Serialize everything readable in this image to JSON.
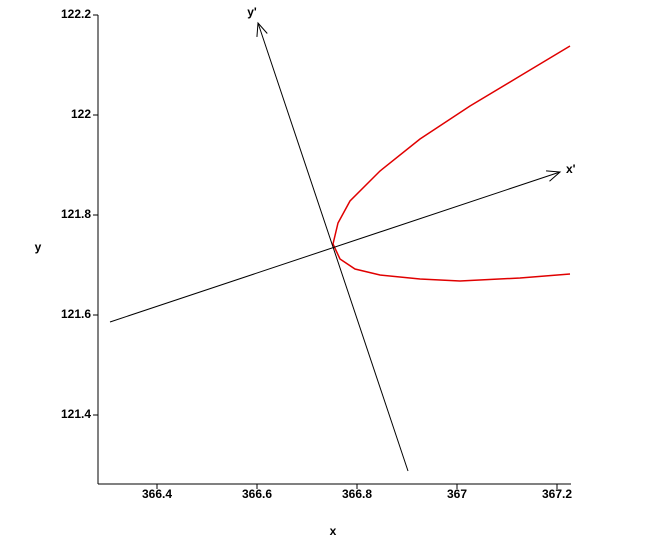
{
  "chart_data": {
    "type": "line",
    "xlabel": "x",
    "ylabel": "y",
    "xlim": [
      366.282,
      367.228
    ],
    "ylim": [
      121.262,
      122.2
    ],
    "xticks": [
      366.4,
      366.6,
      366.8,
      367,
      367.2
    ],
    "yticks": [
      121.4,
      121.6,
      121.8,
      122,
      122.2
    ],
    "series": [
      {
        "color": "#e00000",
        "x": [
          367.226,
          367.126,
          367.026,
          366.926,
          366.846,
          366.786,
          366.762,
          366.752,
          366.766,
          366.796,
          366.846,
          366.926,
          367.006,
          367.126,
          367.226
        ],
        "values": [
          122.138,
          122.078,
          122.018,
          121.952,
          121.888,
          121.828,
          121.784,
          121.742,
          121.712,
          121.692,
          121.68,
          121.672,
          121.668,
          121.674,
          121.682
        ]
      },
      {
        "color": "#000000",
        "x": [
          366.306,
          367.206
        ],
        "values": [
          121.586,
          121.886
        ]
      },
      {
        "color": "#000000",
        "x": [
          366.902,
          366.602
        ],
        "values": [
          121.288,
          122.184
        ]
      }
    ],
    "annotations": [
      "x'",
      "y'"
    ]
  }
}
